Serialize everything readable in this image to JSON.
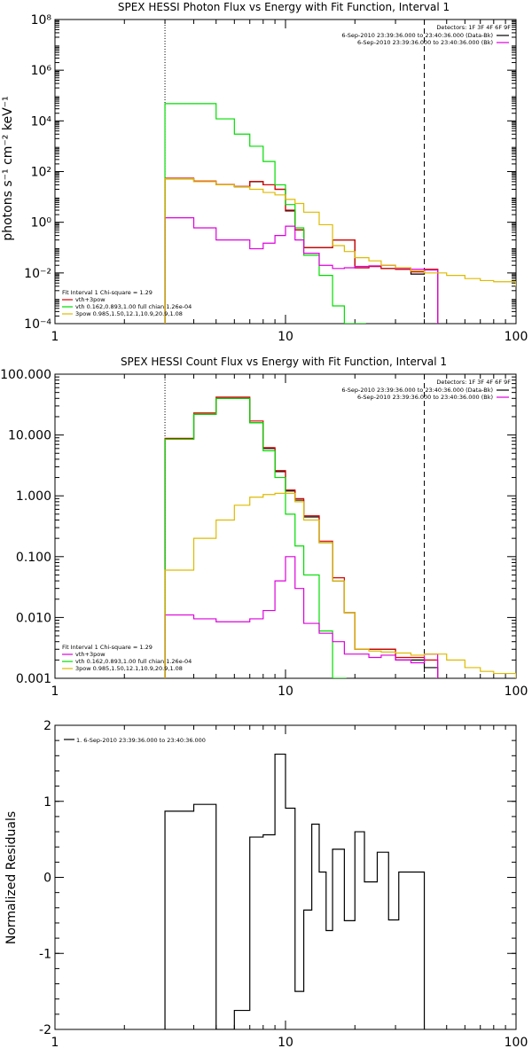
{
  "colors": {
    "background": "#ffffff",
    "axis": "#000000",
    "black": "#000000",
    "red": "#dd0000",
    "green": "#00dd00",
    "magenta": "#dd00dd",
    "yellow": "#ddbb00"
  },
  "chart_data": [
    {
      "type": "line",
      "title": "SPEX HESSI Photon Flux vs Energy with Fit Function, Interval 1",
      "xlabel": "",
      "ylabel": "photons s⁻¹ cm⁻² keV⁻¹",
      "xscale": "log",
      "yscale": "log",
      "xlim": [
        1,
        100
      ],
      "ylim": [
        0.0001,
        100000000
      ],
      "xtick_labels": [
        "1",
        "10",
        "100"
      ],
      "ytick_labels": [
        "10⁻⁴",
        "10⁻²",
        "10⁰",
        "10²",
        "10⁴",
        "10⁶",
        "10⁸"
      ],
      "vlines": [
        3,
        40
      ],
      "top_legend": {
        "header": "Detectors: 1F 3F 4F 6F 9F",
        "entries": [
          {
            "label": "6-Sep-2010 23:39:36.000 to 23:40:36.000 (Data-Bk)",
            "color": "#000000"
          },
          {
            "label": "6-Sep-2010 23:39:36.000 to 23:40:36.000 (Bk)",
            "color": "#dd00dd"
          }
        ]
      },
      "bottom_legend": {
        "header": "Fit Interval 1   Chi-square = 1.29",
        "entries": [
          {
            "label": "vth+3pow",
            "color": "#dd0000"
          },
          {
            "label": "vth 0.162,0.893,1.00  full chian 1.26e-04",
            "color": "#00dd00"
          },
          {
            "label": "3pow 0.985,1.50,12.1,10.9,20.9,1.08",
            "color": "#ddbb00"
          }
        ]
      },
      "series": [
        {
          "color": "#000000",
          "x": [
            3,
            4,
            5,
            6,
            7,
            8,
            9,
            10,
            11,
            12,
            14,
            16,
            18,
            20,
            23,
            26,
            30,
            35,
            40
          ],
          "y": [
            52,
            40,
            30,
            25,
            40,
            30,
            20,
            2.8,
            0.5,
            0.1,
            0.1,
            0.2,
            0.2,
            0.016,
            0.018,
            0.015,
            0.014,
            0.009,
            0.014
          ]
        },
        {
          "color": "#dd0000",
          "x": [
            3,
            4,
            5,
            6,
            7,
            8,
            9,
            10,
            11,
            12,
            14,
            16,
            18,
            20,
            23,
            26,
            30,
            35,
            40
          ],
          "y": [
            55,
            42,
            31,
            26,
            41,
            30,
            20,
            3,
            0.5,
            0.1,
            0.1,
            0.2,
            0.2,
            0.016,
            0.018,
            0.015,
            0.014,
            0.011,
            0.014
          ]
        },
        {
          "color": "#00dd00",
          "x": [
            3,
            4,
            5,
            6,
            7,
            8,
            9,
            10,
            11,
            12,
            14,
            16,
            18,
            20
          ],
          "y": [
            48000,
            48000,
            12000,
            3000,
            1000,
            250,
            30,
            5,
            0.6,
            0.05,
            0.008,
            0.0005,
            0.0001,
            0.0001
          ]
        },
        {
          "color": "#dd00dd",
          "x": [
            3,
            4,
            5,
            6,
            7,
            8,
            9,
            10,
            11,
            12,
            14,
            16,
            18,
            20,
            23,
            26,
            30,
            35,
            40
          ],
          "y": [
            1.5,
            0.6,
            0.2,
            0.2,
            0.09,
            0.15,
            0.3,
            0.7,
            0.2,
            0.06,
            0.02,
            0.015,
            0.016,
            0.018,
            0.019,
            0.02,
            0.015,
            0.014,
            0.013
          ]
        },
        {
          "color": "#ddbb00",
          "x": [
            3,
            4,
            5,
            6,
            7,
            8,
            9,
            10,
            11,
            12,
            14,
            16,
            18,
            20,
            23,
            26,
            30,
            35,
            40,
            50,
            60,
            70,
            80,
            100
          ],
          "y": [
            52,
            40,
            30,
            25,
            20,
            15,
            12,
            8,
            5.5,
            2.5,
            0.8,
            0.12,
            0.07,
            0.04,
            0.03,
            0.02,
            0.016,
            0.012,
            0.01,
            0.008,
            0.006,
            0.005,
            0.0045,
            0.003
          ]
        }
      ]
    },
    {
      "type": "line",
      "title": "SPEX HESSI Count Flux vs Energy with Fit Function, Interval 1",
      "xlabel": "",
      "ylabel": "",
      "xscale": "log",
      "yscale": "log",
      "xlim": [
        1,
        100
      ],
      "ylim": [
        0.001,
        100
      ],
      "xtick_labels": [
        "1",
        "10",
        "100"
      ],
      "ytick_labels": [
        "0.001",
        "0.010",
        "0.100",
        "1.000",
        "10.000",
        "100.000"
      ],
      "vlines": [
        3,
        40
      ],
      "top_legend": {
        "header": "Detectors: 1F 3F 4F 6F 9F",
        "entries": [
          {
            "label": "6-Sep-2010 23:39:36.000 to 23:40:36.000 (Data-Bk)",
            "color": "#000000"
          },
          {
            "label": "6-Sep-2010 23:39:36.000 to 23:40:36.000 (Bk)",
            "color": "#dd00dd"
          }
        ]
      },
      "bottom_legend": {
        "header": "Fit Interval 1   Chi-square = 1.29",
        "entries": [
          {
            "label": "vth+3pow",
            "color": "#dd00dd"
          },
          {
            "label": "vth 0.162,0.893,1.00  full chian 1.26e-04",
            "color": "#00dd00"
          },
          {
            "label": "3pow 0.985,1.50,12.1,10.9,20.9,1.08",
            "color": "#ddbb00"
          }
        ]
      },
      "series": [
        {
          "color": "#000000",
          "x": [
            3,
            4,
            5,
            6,
            7,
            8,
            9,
            10,
            11,
            12,
            14,
            16,
            18,
            20,
            23,
            26,
            30,
            35,
            40
          ],
          "y": [
            8.5,
            22,
            40,
            40,
            16,
            6,
            2.5,
            1.2,
            0.85,
            0.45,
            0.17,
            0.04,
            0.012,
            0.003,
            0.003,
            0.003,
            0.002,
            0.002,
            0.0015
          ]
        },
        {
          "color": "#dd0000",
          "x": [
            3,
            4,
            5,
            6,
            7,
            8,
            9,
            10,
            11,
            12,
            14,
            16,
            18,
            20,
            23,
            26,
            30,
            35,
            40
          ],
          "y": [
            8.8,
            23,
            42,
            42,
            17,
            6.2,
            2.6,
            1.25,
            0.9,
            0.47,
            0.18,
            0.045,
            0.012,
            0.003,
            0.003,
            0.003,
            0.0022,
            0.0022,
            0.002
          ]
        },
        {
          "color": "#00dd00",
          "x": [
            3,
            4,
            5,
            6,
            7,
            8,
            9,
            10,
            11,
            12,
            14,
            16
          ],
          "y": [
            8.5,
            22,
            40,
            40,
            16,
            5.5,
            2,
            0.5,
            0.15,
            0.05,
            0.006,
            0.001
          ]
        },
        {
          "color": "#dd00dd",
          "x": [
            3,
            4,
            5,
            6,
            7,
            8,
            9,
            10,
            11,
            12,
            14,
            16,
            18,
            20,
            23,
            26,
            30,
            35,
            40
          ],
          "y": [
            0.011,
            0.0095,
            0.0085,
            0.0085,
            0.0095,
            0.013,
            0.04,
            0.1,
            0.03,
            0.008,
            0.0055,
            0.004,
            0.0025,
            0.0025,
            0.0022,
            0.0024,
            0.002,
            0.0018,
            0.0025
          ]
        },
        {
          "color": "#ddbb00",
          "x": [
            3,
            4,
            5,
            6,
            7,
            8,
            9,
            10,
            11,
            12,
            14,
            16,
            18,
            20,
            23,
            26,
            30,
            35,
            40,
            50,
            60,
            70,
            80,
            100
          ],
          "y": [
            0.06,
            0.2,
            0.4,
            0.7,
            0.95,
            1.05,
            1.1,
            1.1,
            0.8,
            0.4,
            0.17,
            0.04,
            0.012,
            0.003,
            0.0028,
            0.0027,
            0.0026,
            0.0024,
            0.0025,
            0.002,
            0.0015,
            0.0013,
            0.0012,
            0.001
          ]
        }
      ]
    },
    {
      "type": "line",
      "title": "",
      "xlabel": "",
      "ylabel": "Normalized Residuals",
      "xscale": "log",
      "yscale": "linear",
      "xlim": [
        1,
        100
      ],
      "ylim": [
        -2,
        2
      ],
      "xtick_labels": [
        "1",
        "10",
        "100"
      ],
      "ytick_labels": [
        "-2",
        "-1",
        "0",
        "1",
        "2"
      ],
      "legend": "1.  6-Sep-2010 23:39:36.000 to 23:40:36.000",
      "series": [
        {
          "color": "#000000",
          "x": [
            3,
            4,
            5,
            6,
            7,
            8,
            9,
            10,
            11,
            12,
            13,
            14,
            15,
            16,
            18,
            20,
            22,
            25,
            28,
            31,
            35,
            40
          ],
          "y": [
            0.87,
            0.96,
            -2.0,
            -1.75,
            0.53,
            0.56,
            1.62,
            0.91,
            -1.5,
            -0.43,
            0.7,
            0.07,
            -0.7,
            0.37,
            -0.57,
            0.6,
            -0.06,
            0.33,
            -0.56,
            0.07,
            0.07,
            null
          ]
        }
      ]
    }
  ]
}
